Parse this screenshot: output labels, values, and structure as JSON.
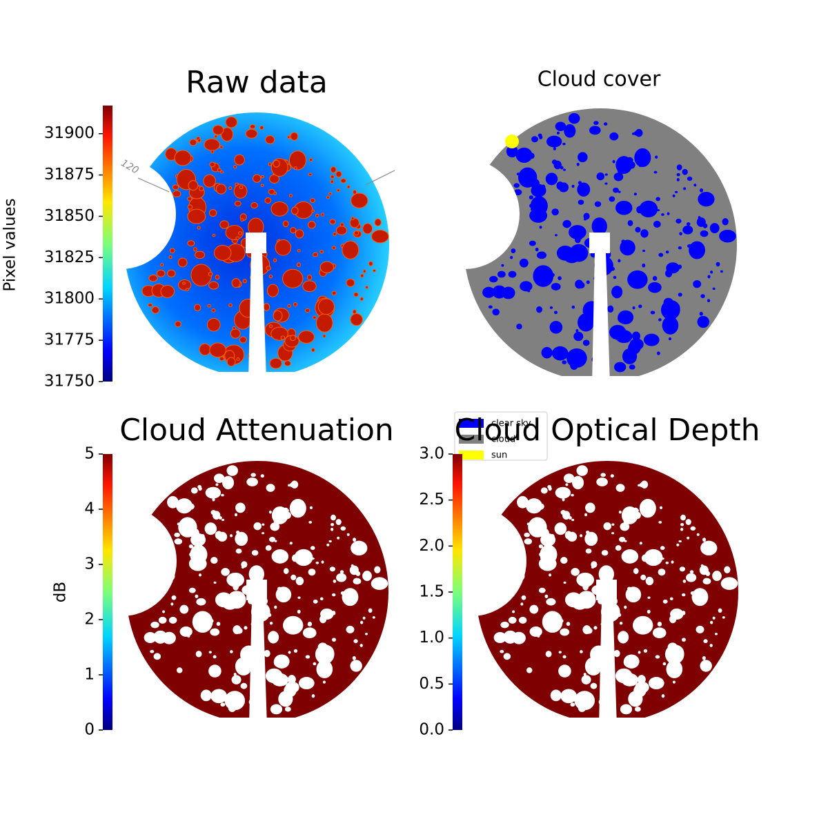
{
  "chart_data": [
    {
      "type": "image",
      "title": "Raw data",
      "annotation": "120",
      "colorbar": {
        "label": "Pixel values",
        "colormap": "jet",
        "lim": [
          31750,
          31917
        ],
        "ticks": [
          31750,
          31775,
          31800,
          31825,
          31850,
          31875,
          31900
        ]
      }
    },
    {
      "type": "image",
      "title": "Cloud cover",
      "legend": [
        {
          "name": "clear sky",
          "color": "#0000ff"
        },
        {
          "name": "cloud",
          "color": "#808080"
        },
        {
          "name": "sun",
          "color": "#ffff00"
        }
      ]
    },
    {
      "type": "image",
      "title": "Cloud Attenuation",
      "colorbar": {
        "label": "dB",
        "colormap": "jet",
        "lim": [
          0,
          5
        ],
        "ticks": [
          0,
          1,
          2,
          3,
          4,
          5
        ]
      }
    },
    {
      "type": "image",
      "title": "Cloud Optical Depth",
      "colorbar": {
        "colormap": "jet",
        "lim": [
          0,
          3
        ],
        "ticks": [
          {
            "value": 0,
            "label": "0.0"
          },
          0.5,
          {
            "value": 1,
            "label": "1.0"
          },
          1.5,
          {
            "value": 2,
            "label": "2.0"
          },
          2.5,
          {
            "value": 3,
            "label": "3.0"
          }
        ]
      }
    }
  ]
}
